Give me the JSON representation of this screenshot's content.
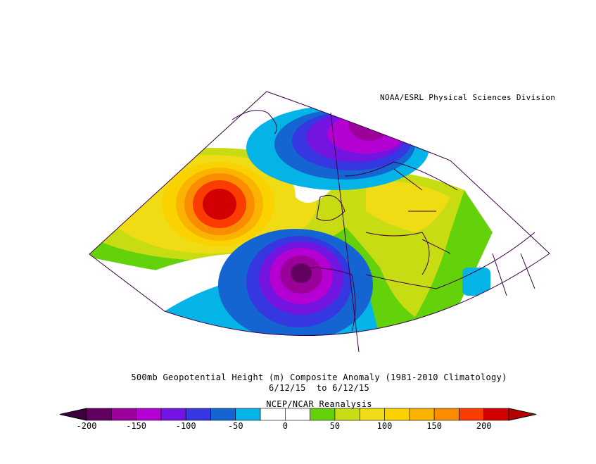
{
  "credit": "NOAA/ESRL Physical Sciences Division",
  "title": "500mb Geopotential Height (m) Composite Anomaly (1981-2010 Climatology)",
  "date_range": "6/12/15  to 6/12/15",
  "source": "NCEP/NCAR Reanalysis",
  "colorbar": {
    "ticks": [
      "-200",
      "-150",
      "-100",
      "-50",
      "0",
      "50",
      "100",
      "150",
      "200"
    ],
    "colors": [
      "#620062",
      "#9b009b",
      "#b400d2",
      "#7314e1",
      "#3737e1",
      "#1464d2",
      "#05b4e6",
      "#ffffff",
      "#ffffff",
      "#64d20a",
      "#c8dc14",
      "#f0dc14",
      "#fad200",
      "#fab400",
      "#fa8c00",
      "#fa3c00",
      "#d20000"
    ],
    "min_arrow_color": "#3c003c",
    "max_arrow_color": "#b40000"
  },
  "map_colors": {
    "land_border": "#3c0046",
    "projection_edge": "#3c0046"
  }
}
